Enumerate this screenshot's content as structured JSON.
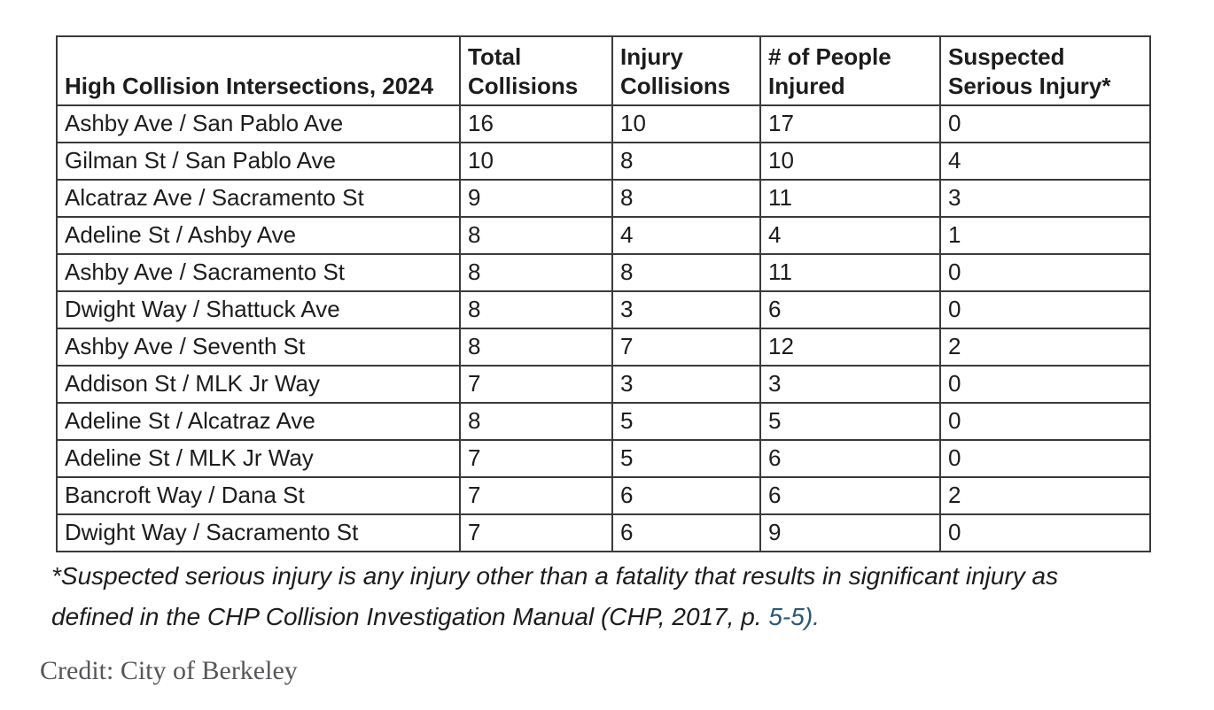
{
  "chart_data": {
    "type": "table",
    "title": "High Collision Intersections, 2024",
    "columns": [
      "High Collision Intersections, 2024",
      "Total\nCollisions",
      "Injury\nCollisions",
      "# of People\nInjured",
      "Suspected\nSerious Injury*"
    ],
    "rows": [
      [
        "Ashby Ave / San Pablo Ave",
        16,
        10,
        17,
        0
      ],
      [
        "Gilman St / San Pablo Ave",
        10,
        8,
        10,
        4
      ],
      [
        "Alcatraz Ave / Sacramento St",
        9,
        8,
        11,
        3
      ],
      [
        "Adeline St / Ashby Ave",
        8,
        4,
        4,
        1
      ],
      [
        "Ashby Ave / Sacramento St",
        8,
        8,
        11,
        0
      ],
      [
        "Dwight Way / Shattuck Ave",
        8,
        3,
        6,
        0
      ],
      [
        "Ashby Ave / Seventh St",
        8,
        7,
        12,
        2
      ],
      [
        "Addison St / MLK Jr Way",
        7,
        3,
        3,
        0
      ],
      [
        "Adeline St / Alcatraz Ave",
        8,
        5,
        5,
        0
      ],
      [
        "Adeline St / MLK Jr Way",
        7,
        5,
        6,
        0
      ],
      [
        "Bancroft Way / Dana St",
        7,
        6,
        6,
        2
      ],
      [
        "Dwight Way / Sacramento St",
        7,
        6,
        9,
        0
      ]
    ]
  },
  "footnote": {
    "line1": "*Suspected serious injury is any injury other than a fatality that results in significant injury as",
    "line2_prefix": "defined in the CHP Collision Investigation Manual (CHP, 2017, p. ",
    "line2_link": "5-5",
    "line2_suffix": ")."
  },
  "credit": "Credit: City of Berkeley",
  "colors": {
    "link": "#2b5776",
    "table_border": "#3a3a3a",
    "text": "#1c1c1c",
    "credit_text": "#55565a"
  }
}
